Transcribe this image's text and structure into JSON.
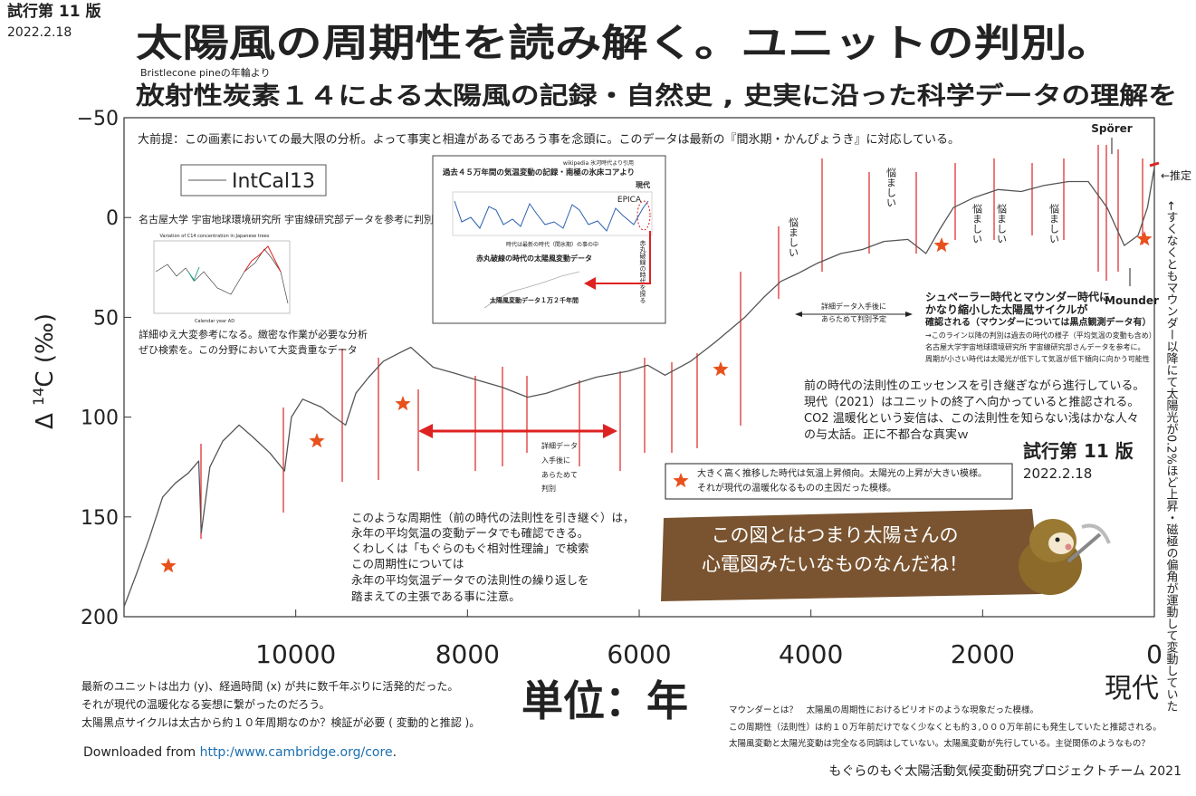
{
  "chart_data": {
    "type": "line",
    "title": "太陽風の周期性を読み解く。ユニットの判別。",
    "subtitle": "放射性炭素１４による太陽風の記録・自然史 , 史実に沿った科学データの理解を",
    "y_label": {
      "prefix": "Δ ",
      "sup": "14",
      "suffix": "C (‰)"
    },
    "x_label": "単位：年",
    "x_end_label": "現代",
    "xlim": [
      12000,
      0
    ],
    "xticks": [
      10000,
      8000,
      6000,
      4000,
      2000,
      0
    ],
    "ylim": [
      200,
      -50
    ],
    "yticks": [
      {
        "value": -50,
        "label": "−50"
      },
      0,
      50,
      100,
      150,
      200
    ],
    "x": [
      12000,
      11850,
      11700,
      11550,
      11400,
      11250,
      11130,
      11100,
      11000,
      10850,
      10660,
      10500,
      10300,
      10130,
      10050,
      9920,
      9700,
      9550,
      9420,
      9300,
      9150,
      8980,
      8800,
      8660,
      8400,
      8150,
      7920,
      7600,
      7300,
      7080,
      6800,
      6500,
      6130,
      5900,
      5700,
      5400,
      5100,
      4770,
      4550,
      4350,
      4150,
      3930,
      3650,
      3400,
      3150,
      2870,
      2660,
      2500,
      2340,
      2100,
      1820,
      1550,
      1290,
      1000,
      770,
      550,
      350,
      190,
      80,
      0
    ],
    "series": [
      {
        "name": "IntCal13",
        "color": "#555555",
        "values": [
          195,
          178,
          160,
          140,
          133,
          128,
          122,
          158,
          125,
          112,
          104,
          110,
          118,
          127,
          100,
          91,
          95,
          100,
          104,
          88,
          80,
          72,
          68,
          65,
          75,
          78,
          81,
          85,
          90,
          88,
          84,
          80,
          77,
          74,
          79,
          72,
          62,
          50,
          40,
          32,
          28,
          23,
          18,
          16,
          12,
          11,
          18,
          6,
          -5,
          -10,
          -14,
          -13,
          -16,
          -18,
          -18,
          -5,
          14,
          9,
          -5,
          -25
        ]
      }
    ],
    "annotations": {
      "edition": "試行第 11 版",
      "date": "2022.2.18",
      "source_tree": "Bristlecone pineの年輪より",
      "premise": "大前提：この画素においての最大限の分析。よって事実と相違があるであろう事を念頭に。このデータは最新の『間氷期・かんぴょうき』に対応している。",
      "sporer": "Spörer",
      "estimate": "←推定",
      "mounder": "Mounder",
      "right_note": "←すくなくともマウンダー以降にて太陽光が0.2%ほど上昇・磁極の偏角が運動して変動していた",
      "nagoya": "名古屋大学 宇宙地球環境研究所 宇宙線研究部データを参考に判別",
      "inset1_title": "Variation of C14 concentration in Japanese trees",
      "inset1_xlabel": "Calendar year AD",
      "detail_note": [
        "詳細ゆえ大変参考になる。緻密な作業が必要な分析",
        "ぜひ検索を。この分野において大変貴重なデータ"
      ],
      "inset2_source": "wikipedia 氷河時代より引用",
      "inset2_title": "過去４５万年間の気温変動の記録・南極の氷床コアより",
      "inset2_now": "現代",
      "inset2_epica": "EPICA",
      "inset2_era": "時代は最新の時代（間氷期）の事の中",
      "inset2_red": "赤丸破線の時代の太陽風変動データ",
      "inset2_data": "太陽風変動データ１万２千年間",
      "inset2_side": "赤丸破線の時代を探る",
      "troubling": [
        "悩ましい",
        "悩ましい",
        "悩ましい",
        "悩ましい",
        "悩ましい"
      ],
      "pending": [
        "詳細データ入手後に",
        "あらためて判別予定"
      ],
      "sporer_note": [
        "シュペーラー時代とマウンダー時代に",
        "かなり縮小した太陽風サイクルが",
        "確認される（マウンダーについては黒点観測データ有）"
      ],
      "sporer_small": [
        "→このライン以降の判別は過去の時代の様子（平均気温の変動も含め）",
        "名古屋大学宇宙地球環境研究所 宇宙線研究部さんデータを参考に。",
        "周期が小さい時代は太陽光が低下して気温が低下傾向に向かう可能性"
      ],
      "modern_note": [
        "前の時代の法則性のエッセンスを引き継ぎながら進行している。",
        "現代（2021）はユニットの終了へ向かっていると推認される。",
        "CO2 温暖化という妄信は、この法則性を知らない浅はかな人々",
        "の与太話。正に不都合な真実ｗ"
      ],
      "pending2": [
        "詳細データ",
        "入手後に",
        "あらためて",
        "判別"
      ],
      "star_note": [
        "大きく高く推移した時代は気温上昇傾向。太陽光の上昇が大きい模様。",
        "それが現代の温暖化なるものの主因だった模様。"
      ],
      "cycle_note": [
        "このような周期性（前の時代の法則性を引き継ぐ）は，",
        "永年の平均気温の変動データでも確認できる。",
        "くわしくは「もぐらのもぐ相対性理論」で検索",
        "この周期性については",
        "永年の平均気温データでの法則性の繰り返しを",
        "踏まえての主張である事に注意。"
      ],
      "bubble": [
        "この図とはつまり太陽さんの",
        "心電図みたいなものなんだね！"
      ],
      "bottom_left": [
        "最新のユニットは出力 (y)、経過時間 (x) が共に数千年ぶりに活発的だった。",
        "それが現代の温暖化なる妄想に繋がったのだろう。",
        "太陽黒点サイクルは太古から約１０年周期なのか？検証が必要 ( 変動的と推認 )。"
      ],
      "download": {
        "prefix": "Downloaded from ",
        "link": "http:/www.cambridge.org/core",
        "suffix": "."
      },
      "bottom_right": [
        "マウンダーとは？　太陽風の周期性におけるピリオドのような現象だった模様。",
        "この周期性（法則性）は約１０万年前だけでなく少なくとも約３,０００万年前にも発生していたと推認される。",
        "太陽風変動と太陽光変動は完全なる同調はしていない。太陽風変動が先行している。主従関係のようなもの？"
      ],
      "credit": "もぐらのもぐ太陽活動気候変動研究プロジェクトチーム 2021"
    }
  }
}
